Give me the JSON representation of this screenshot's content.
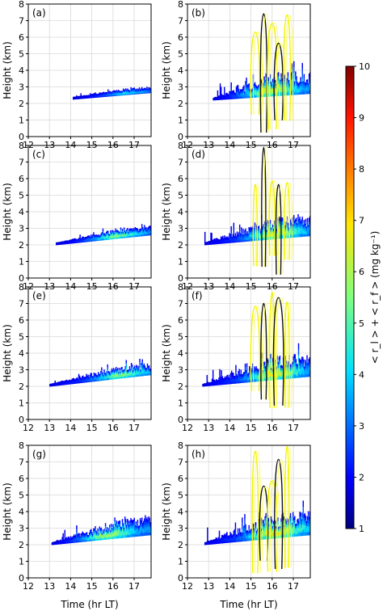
{
  "chart_data": {
    "type": "heatmap",
    "x_ticks": [
      12,
      13,
      14,
      15,
      16,
      17
    ],
    "y_ticks": [
      0,
      1,
      2,
      3,
      4,
      5,
      6,
      7,
      8
    ],
    "xlim": [
      12,
      17.8
    ],
    "ylim": [
      0,
      8
    ],
    "grid": true,
    "xlabel": "Time  (hr  LT)",
    "ylabel": "Height  (km)",
    "colorbar": {
      "label": "< r_l > + < r_f >  (mg kg⁻¹)",
      "range": [
        1,
        10
      ],
      "ticks": [
        1,
        2,
        3,
        4,
        5,
        6,
        7,
        8,
        9,
        10
      ],
      "colormap": "jet"
    },
    "panels": [
      {
        "label": "(a)",
        "start": 14.1,
        "base": [
          2.25,
          2.65
        ],
        "top_extra": 0.25,
        "contours": false,
        "peak_time": 16.5,
        "intensity": 0.45
      },
      {
        "label": "(b)",
        "start": 13.2,
        "base": [
          2.2,
          2.6
        ],
        "top_extra": 1.3,
        "contours": true,
        "peak_time": 15.6,
        "intensity": 1.0
      },
      {
        "label": "(c)",
        "start": 13.3,
        "base": [
          2.0,
          2.6
        ],
        "top_extra": 0.45,
        "contours": false,
        "peak_time": 16.0,
        "intensity": 0.75
      },
      {
        "label": "(d)",
        "start": 12.8,
        "base": [
          2.0,
          2.55
        ],
        "top_extra": 1.2,
        "contours": true,
        "peak_time": 16.0,
        "intensity": 0.9
      },
      {
        "label": "(e)",
        "start": 13.0,
        "base": [
          2.0,
          2.7
        ],
        "top_extra": 0.6,
        "contours": false,
        "peak_time": 16.3,
        "intensity": 0.75
      },
      {
        "label": "(f)",
        "start": 12.7,
        "base": [
          2.0,
          2.6
        ],
        "top_extra": 1.3,
        "contours": true,
        "peak_time": 16.0,
        "intensity": 0.9
      },
      {
        "label": "(g)",
        "start": 13.1,
        "base": [
          2.0,
          2.6
        ],
        "top_extra": 1.0,
        "contours": false,
        "peak_time": 15.4,
        "intensity": 0.95
      },
      {
        "label": "(h)",
        "start": 12.8,
        "base": [
          2.0,
          2.6
        ],
        "top_extra": 1.4,
        "contours": true,
        "peak_time": 16.0,
        "intensity": 1.0
      }
    ]
  }
}
